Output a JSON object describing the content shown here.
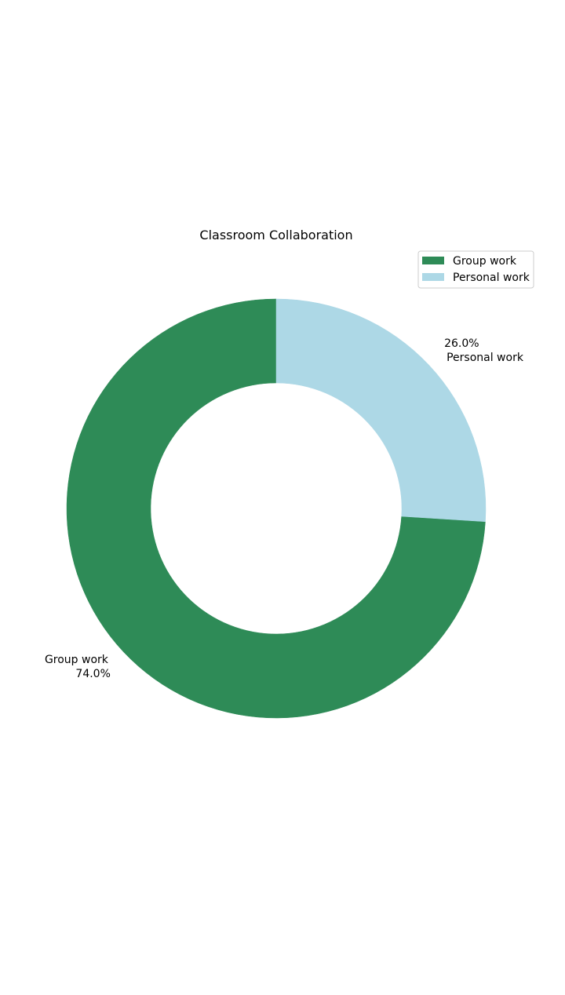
{
  "chart_data": {
    "type": "pie",
    "variant": "donut",
    "title": "Classroom Collaboration",
    "categories": [
      "Group work",
      "Personal work"
    ],
    "values": [
      74.0,
      26.0
    ],
    "value_labels": [
      "74.0%",
      "26.0%"
    ],
    "colors": [
      "#2e8b57",
      "#add8e6"
    ],
    "legend": {
      "placement": "top-right",
      "entries": [
        "Group work",
        "Personal work"
      ]
    }
  }
}
